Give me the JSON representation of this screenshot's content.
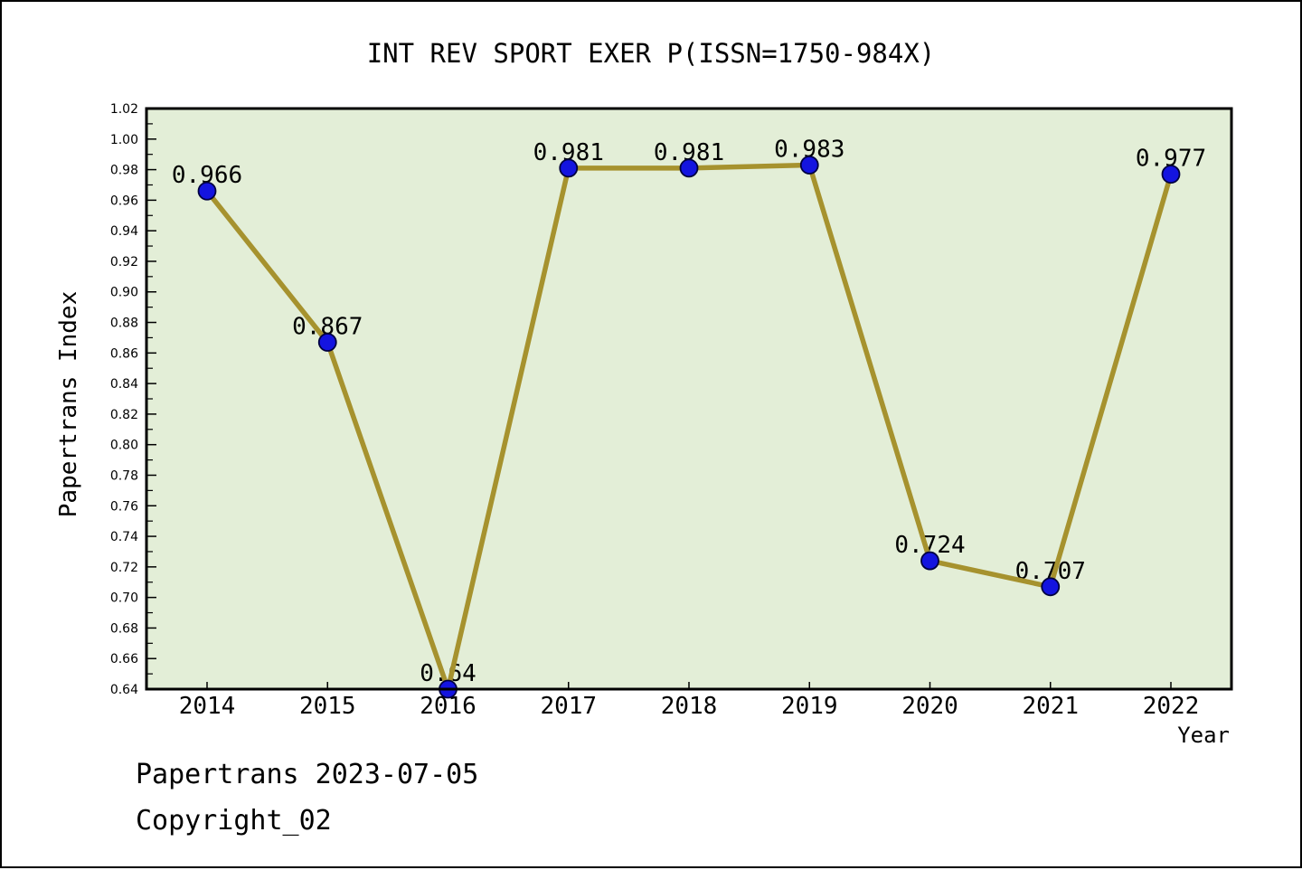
{
  "page": {
    "title": "INT REV SPORT EXER P(ISSN=1750-984X)",
    "footer_line1": "Papertrans 2023-07-05",
    "footer_line2": "Copyright_02"
  },
  "chart_data": {
    "type": "line",
    "title": "INT REV SPORT EXER P(ISSN=1750-984X)",
    "xlabel": "Year",
    "ylabel": "Papertrans Index",
    "categories": [
      "2014",
      "2015",
      "2016",
      "2017",
      "2018",
      "2019",
      "2020",
      "2021",
      "2022"
    ],
    "values": [
      0.966,
      0.867,
      0.64,
      0.981,
      0.981,
      0.983,
      0.724,
      0.707,
      0.977
    ],
    "point_labels": [
      "0.966",
      "0.867",
      "0.64",
      "0.981",
      "0.981",
      "0.983",
      "0.724",
      "0.707",
      "0.977"
    ],
    "ylim": [
      0.64,
      1.02
    ],
    "y_major_step": 0.02,
    "y_minor_step": 0.01,
    "y_tick_labels": [
      "0.64",
      "0.66",
      "0.68",
      "0.70",
      "0.72",
      "0.74",
      "0.76",
      "0.78",
      "0.80",
      "0.82",
      "0.84",
      "0.86",
      "0.88",
      "0.90",
      "0.92",
      "0.94",
      "0.96",
      "0.98",
      "1.00",
      "1.02"
    ],
    "grid": false,
    "legend": null,
    "colors": {
      "plot_background": "#E3EED7",
      "line": "#A6922E",
      "marker_fill": "#1414E0",
      "marker_edge": "#000040",
      "axis": "#000000",
      "text": "#000000"
    }
  }
}
